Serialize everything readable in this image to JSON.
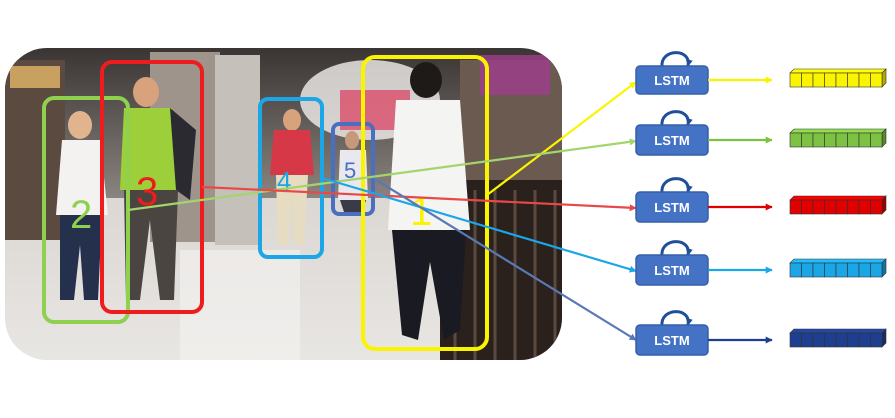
{
  "diagram": {
    "tracks": [
      {
        "id": "1",
        "color": "#fbf400"
      },
      {
        "id": "2",
        "color": "#8fd14f"
      },
      {
        "id": "3",
        "color": "#ee1c1c"
      },
      {
        "id": "4",
        "color": "#1ba6e8"
      },
      {
        "id": "5",
        "color": "#4a6fc0"
      }
    ],
    "lstm_blocks": [
      {
        "label": "LSTM",
        "output_color": "#fbf400",
        "input_track": "1"
      },
      {
        "label": "LSTM",
        "output_color": "#7dc242",
        "input_track": "2"
      },
      {
        "label": "LSTM",
        "output_color": "#e00000",
        "input_track": "3"
      },
      {
        "label": "LSTM",
        "output_color": "#1ba6e8",
        "input_track": "4"
      },
      {
        "label": "LSTM",
        "output_color": "#1e3f8f",
        "input_track": "5"
      }
    ],
    "colors": {
      "lstm_fill": "#4472c4",
      "lstm_stroke": "#3560a8",
      "recurrent_arrow": "#1f4e9a"
    },
    "icons": [
      "pedestrian-photo",
      "recurrent-loop-icon",
      "feature-vector"
    ]
  }
}
